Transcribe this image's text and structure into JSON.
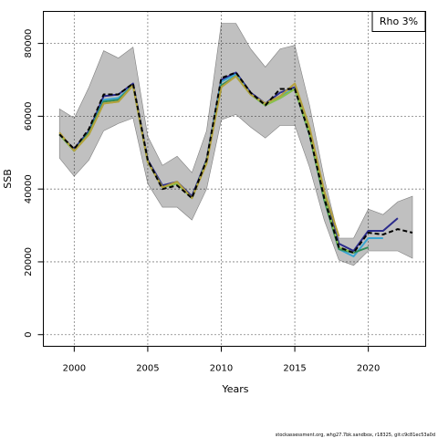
{
  "chart_data": {
    "type": "line",
    "xlabel": "Years",
    "ylabel": "SSB",
    "xlim": [
      1997.9,
      2023.9
    ],
    "ylim": [
      -3200,
      88800
    ],
    "x_ticks": [
      2000,
      2005,
      2010,
      2015,
      2020
    ],
    "y_ticks": [
      0,
      20000,
      40000,
      60000,
      80000
    ],
    "grid": true,
    "legend": {
      "position": "top-right",
      "text": "Rho 3%"
    },
    "confidence_band": {
      "color": "#c0c0c0",
      "x": [
        1999,
        2000,
        2001,
        2002,
        2003,
        2004,
        2005,
        2006,
        2007,
        2008,
        2009,
        2010,
        2011,
        2012,
        2013,
        2014,
        2015,
        2016,
        2017,
        2018,
        2019,
        2020,
        2021,
        2022,
        2023
      ],
      "upper": [
        62000,
        59500,
        68000,
        78000,
        76000,
        79000,
        54500,
        46500,
        49000,
        44500,
        56000,
        85500,
        85500,
        78500,
        73500,
        78500,
        79500,
        63000,
        43000,
        26500,
        26500,
        34500,
        33000,
        36500,
        38000
      ],
      "lower": [
        48500,
        43500,
        48000,
        56000,
        58000,
        59500,
        41500,
        35000,
        35000,
        31500,
        40000,
        59000,
        60500,
        57000,
        54000,
        57500,
        57500,
        46000,
        31500,
        20500,
        19000,
        23000,
        23000,
        23000,
        21000
      ]
    },
    "series": [
      {
        "color": "#2b2b8c",
        "dash": "none",
        "x": [
          1999,
          2000,
          2001,
          2002,
          2003,
          2004,
          2005,
          2006,
          2007,
          2008,
          2009,
          2010,
          2011,
          2012,
          2013,
          2014,
          2015,
          2016,
          2017,
          2018,
          2019,
          2020,
          2021,
          2022
        ],
        "values": [
          55000,
          51000,
          56000,
          65500,
          66000,
          69000,
          48000,
          41000,
          42000,
          38000,
          48000,
          70000,
          72000,
          66500,
          63500,
          66500,
          68000,
          56000,
          38500,
          25000,
          23000,
          28500,
          28500,
          32000
        ]
      },
      {
        "color": "#3aa5d0",
        "dash": "none",
        "x": [
          1999,
          2000,
          2001,
          2002,
          2003,
          2004,
          2005,
          2006,
          2007,
          2008,
          2009,
          2010,
          2011,
          2012,
          2013,
          2014,
          2015,
          2016,
          2017,
          2018,
          2019,
          2020,
          2021
        ],
        "values": [
          55000,
          50500,
          55500,
          64500,
          65000,
          68500,
          47500,
          40500,
          41500,
          37500,
          47500,
          69500,
          71500,
          66000,
          63000,
          65500,
          67500,
          55000,
          37500,
          23500,
          21500,
          26500,
          26500
        ]
      },
      {
        "color": "#2e8b57",
        "dash": "none",
        "x": [
          1999,
          2000,
          2001,
          2002,
          2003,
          2004,
          2005,
          2006,
          2007,
          2008,
          2009,
          2010,
          2011,
          2012,
          2013,
          2014,
          2015,
          2016,
          2017,
          2018,
          2019,
          2020
        ],
        "values": [
          55000,
          50500,
          55500,
          64000,
          64500,
          68500,
          47500,
          40500,
          41500,
          37500,
          47500,
          68500,
          71000,
          66000,
          63000,
          65000,
          67500,
          55000,
          37000,
          23500,
          22500,
          24000
        ]
      },
      {
        "color": "#8bc34a",
        "dash": "none",
        "x": [
          1999,
          2000,
          2001,
          2002,
          2003,
          2004,
          2005,
          2006,
          2007,
          2008,
          2009,
          2010,
          2011,
          2012,
          2013,
          2014,
          2015,
          2016,
          2017,
          2018,
          2019
        ],
        "values": [
          55000,
          50500,
          55000,
          63500,
          64000,
          68500,
          47500,
          40500,
          41500,
          37500,
          47500,
          68000,
          71000,
          66000,
          63000,
          65000,
          67500,
          55500,
          38000,
          24000,
          22500
        ]
      },
      {
        "color": "#b5a13c",
        "dash": "none",
        "x": [
          1999,
          2000,
          2001,
          2002,
          2003,
          2004,
          2005,
          2006,
          2007,
          2008,
          2009,
          2010,
          2011,
          2012,
          2013,
          2014,
          2015,
          2016,
          2017,
          2018
        ],
        "values": [
          55500,
          50500,
          55000,
          63500,
          64000,
          68500,
          47500,
          40500,
          42000,
          37500,
          47000,
          68000,
          71000,
          66000,
          63500,
          65500,
          69000,
          57000,
          39500,
          27000
        ]
      },
      {
        "color": "#000000",
        "dash": "5,3",
        "x": [
          1999,
          2000,
          2001,
          2002,
          2003,
          2004,
          2005,
          2006,
          2007,
          2008,
          2009,
          2010,
          2011,
          2012,
          2013,
          2014,
          2015,
          2016,
          2017,
          2018,
          2019,
          2020,
          2021,
          2022,
          2023
        ],
        "values": [
          55000,
          51000,
          56500,
          66000,
          66000,
          69000,
          48000,
          40000,
          41000,
          37500,
          48000,
          70500,
          72000,
          66500,
          63000,
          67500,
          67500,
          55000,
          37500,
          24000,
          22500,
          28000,
          27500,
          29000,
          28000
        ]
      }
    ]
  },
  "footer": {
    "text": "stockassessment.org, whg27.7bk.sandbox, r18325, git:c9c81ec53a0d"
  }
}
